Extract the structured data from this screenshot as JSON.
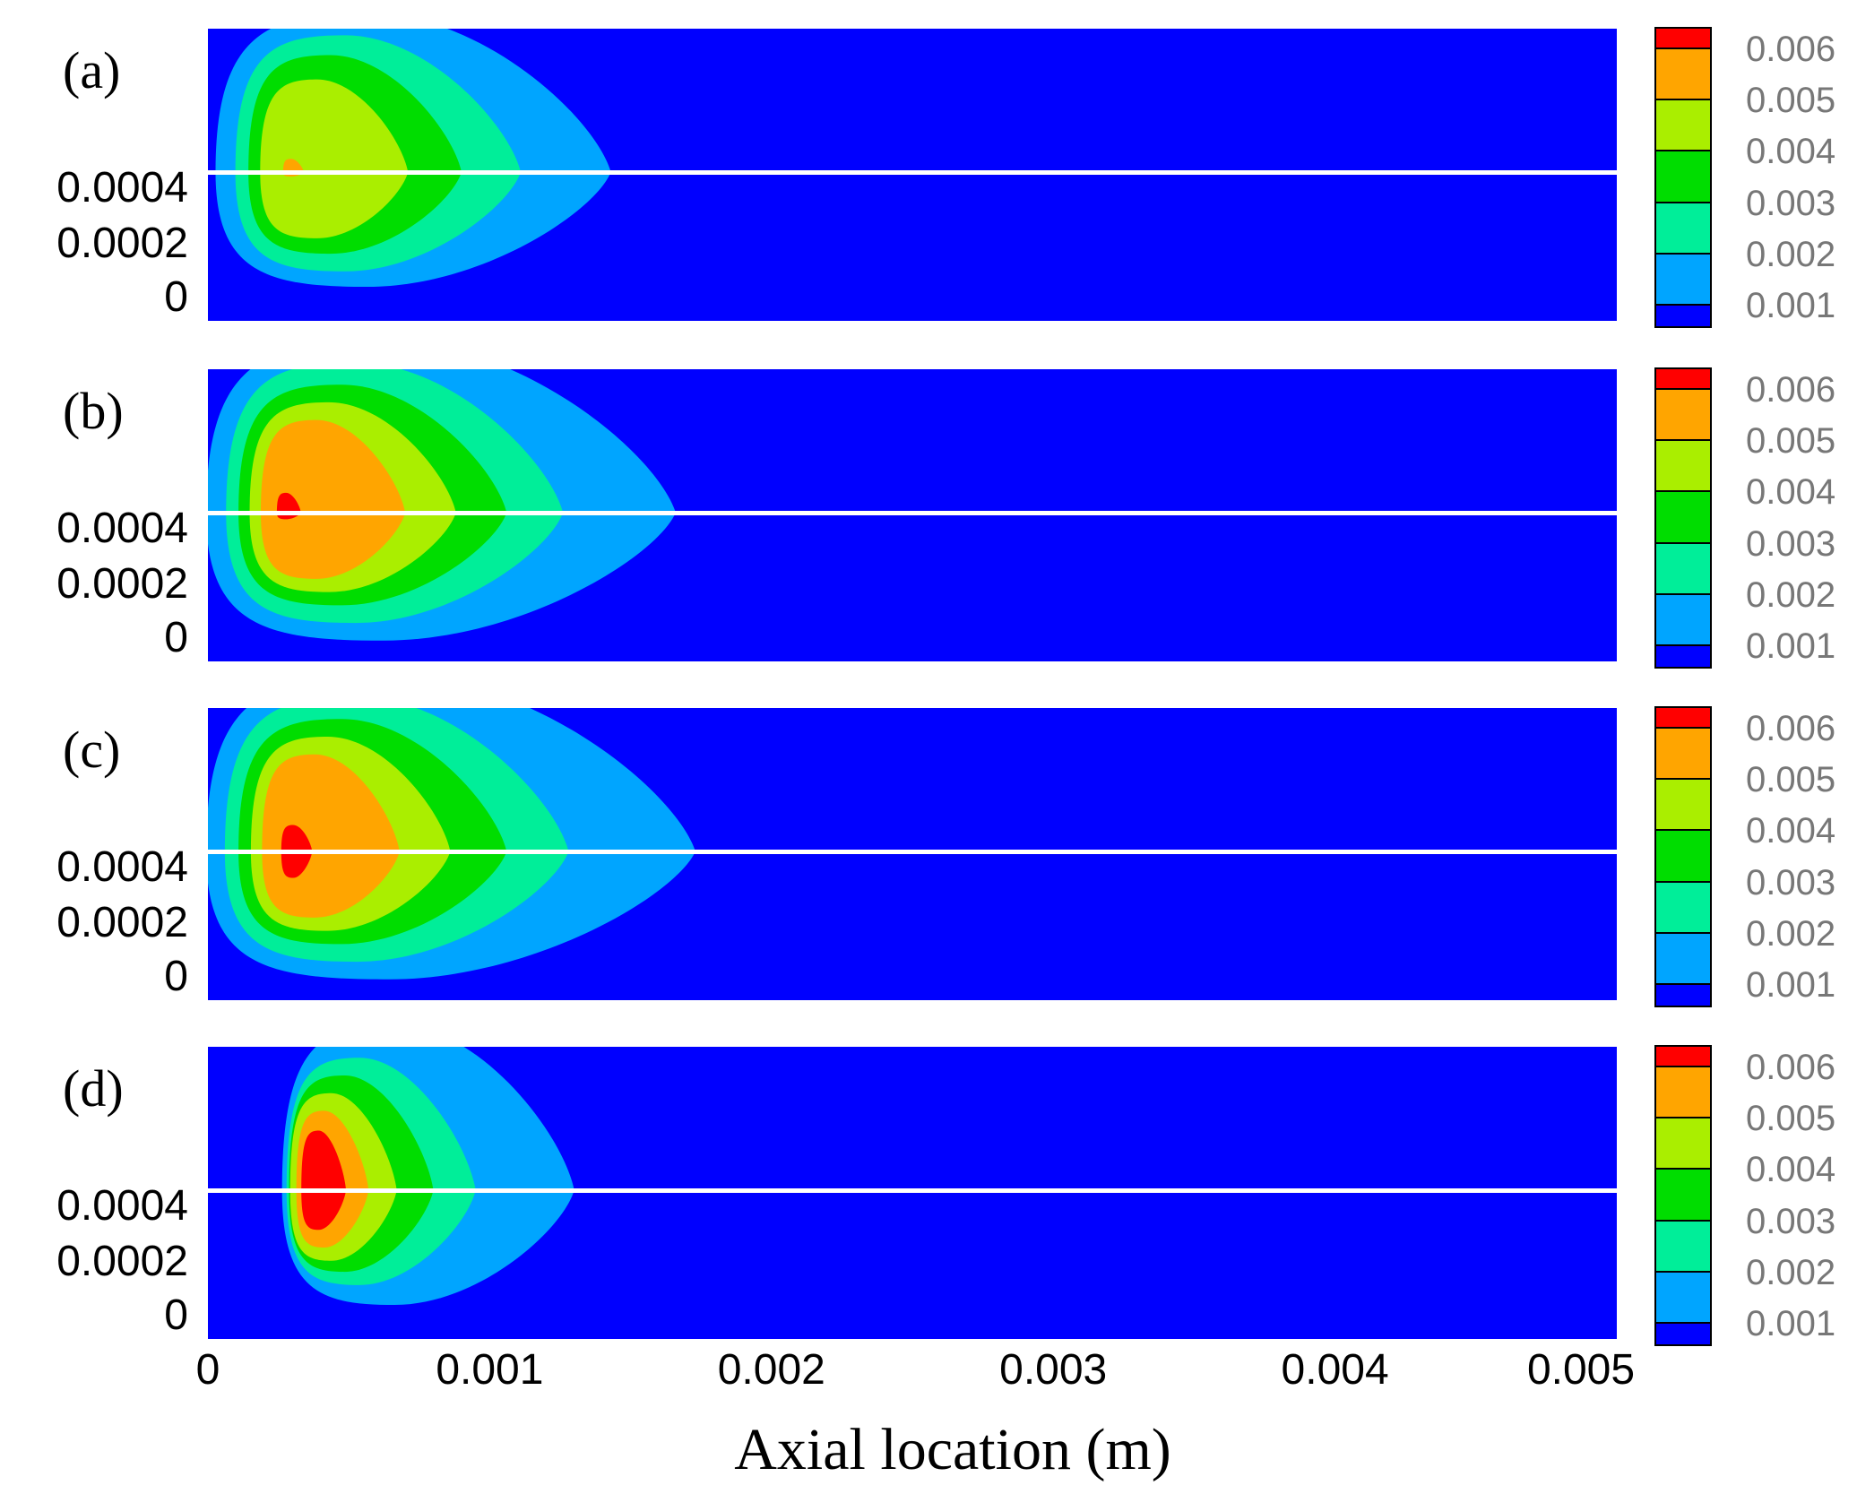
{
  "chart_data": {
    "type": "heatmap",
    "xlabel": "Axial location (m)",
    "x_ticks": [
      "0",
      "0.001",
      "0.002",
      "0.003",
      "0.004",
      "0.005"
    ],
    "xlim": [
      0,
      0.005
    ],
    "y_ticks": [
      "0.0004",
      "0.0002",
      "0"
    ],
    "colorbar": {
      "labels": [
        "0.006",
        "0.005",
        "0.004",
        "0.003",
        "0.002",
        "0.001"
      ],
      "levels": [
        0.0065,
        0.006,
        0.005,
        0.004,
        0.003,
        0.002,
        0.001
      ],
      "colors": [
        "#ff0000",
        "#ffa500",
        "#aaee00",
        "#00dd00",
        "#00ee99",
        "#00a5ff",
        "#0000ff"
      ]
    },
    "panels": [
      {
        "label": "(a)",
        "contours": [
          {
            "level": 0.001,
            "color": "#00a5ff",
            "cx": 0.00028,
            "rx": 0.00115,
            "ry_up": 0.00072,
            "ry_down": 0.00052
          },
          {
            "level": 0.002,
            "color": "#00ee99",
            "cx": 0.00028,
            "rx": 0.00083,
            "ry_up": 0.00062,
            "ry_down": 0.00045
          },
          {
            "level": 0.003,
            "color": "#00dd00",
            "cx": 0.00028,
            "rx": 0.00062,
            "ry_up": 0.00053,
            "ry_down": 0.00037
          },
          {
            "level": 0.004,
            "color": "#aaee00",
            "cx": 0.00028,
            "rx": 0.00043,
            "ry_up": 0.00042,
            "ry_down": 0.0003
          },
          {
            "level": 0.005,
            "color": "#ffa500",
            "cx": 0.00028,
            "rx": 6e-05,
            "ry_up": 6e-05,
            "ry_down": 2e-05
          }
        ]
      },
      {
        "label": "(b)",
        "contours": [
          {
            "level": 0.001,
            "color": "#00a5ff",
            "cx": 0.00028,
            "rx": 0.00138,
            "ry_up": 0.00078,
            "ry_down": 0.00058
          },
          {
            "level": 0.002,
            "color": "#00ee99",
            "cx": 0.00028,
            "rx": 0.00098,
            "ry_up": 0.00068,
            "ry_down": 0.0005
          },
          {
            "level": 0.003,
            "color": "#00dd00",
            "cx": 0.00028,
            "rx": 0.00078,
            "ry_up": 0.00058,
            "ry_down": 0.00042
          },
          {
            "level": 0.004,
            "color": "#aaee00",
            "cx": 0.00028,
            "rx": 0.0006,
            "ry_up": 0.0005,
            "ry_down": 0.00036
          },
          {
            "level": 0.005,
            "color": "#ffa500",
            "cx": 0.00028,
            "rx": 0.00042,
            "ry_up": 0.00042,
            "ry_down": 0.0003
          },
          {
            "level": 0.006,
            "color": "#ff0000",
            "cx": 0.00026,
            "rx": 7e-05,
            "ry_up": 9e-05,
            "ry_down": 3e-05
          }
        ]
      },
      {
        "label": "(c)",
        "contours": [
          {
            "level": 0.001,
            "color": "#00a5ff",
            "cx": 0.00028,
            "rx": 0.00145,
            "ry_up": 0.0008,
            "ry_down": 0.00058
          },
          {
            "level": 0.002,
            "color": "#00ee99",
            "cx": 0.00028,
            "rx": 0.001,
            "ry_up": 0.0007,
            "ry_down": 0.0005
          },
          {
            "level": 0.003,
            "color": "#00dd00",
            "cx": 0.00028,
            "rx": 0.00078,
            "ry_up": 0.0006,
            "ry_down": 0.00042
          },
          {
            "level": 0.004,
            "color": "#aaee00",
            "cx": 0.00028,
            "rx": 0.00058,
            "ry_up": 0.00052,
            "ry_down": 0.00036
          },
          {
            "level": 0.005,
            "color": "#ffa500",
            "cx": 0.00028,
            "rx": 0.0004,
            "ry_up": 0.00044,
            "ry_down": 0.0003
          },
          {
            "level": 0.006,
            "color": "#ff0000",
            "cx": 0.00028,
            "rx": 9e-05,
            "ry_up": 0.00012,
            "ry_down": 0.00012
          }
        ]
      },
      {
        "label": "(d)",
        "contours": [
          {
            "level": 0.001,
            "color": "#00a5ff",
            "cx": 0.00045,
            "rx": 0.00085,
            "ry_up": 0.00075,
            "ry_down": 0.00052
          },
          {
            "level": 0.002,
            "color": "#00ee99",
            "cx": 0.0004,
            "rx": 0.00055,
            "ry_up": 0.0006,
            "ry_down": 0.00043
          },
          {
            "level": 0.003,
            "color": "#00dd00",
            "cx": 0.00038,
            "rx": 0.00042,
            "ry_up": 0.00052,
            "ry_down": 0.00037
          },
          {
            "level": 0.004,
            "color": "#aaee00",
            "cx": 0.00036,
            "rx": 0.00031,
            "ry_up": 0.00044,
            "ry_down": 0.00032
          },
          {
            "level": 0.005,
            "color": "#ffa500",
            "cx": 0.00036,
            "rx": 0.00021,
            "ry_up": 0.00036,
            "ry_down": 0.00026
          },
          {
            "level": 0.006,
            "color": "#ff0000",
            "cx": 0.00036,
            "rx": 0.00013,
            "ry_up": 0.00027,
            "ry_down": 0.00018
          }
        ]
      }
    ]
  }
}
